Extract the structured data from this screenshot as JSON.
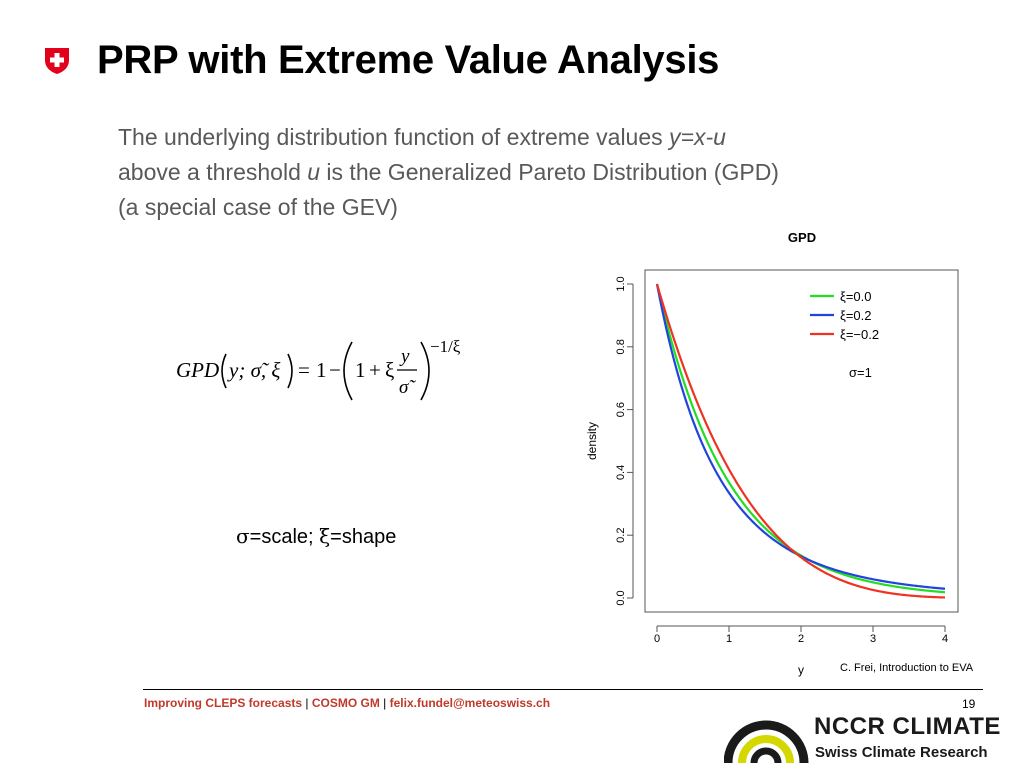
{
  "slide": {
    "title": "PRP with Extreme Value Analysis",
    "intro": {
      "line1_text": "The underlying distribution function of extreme values ",
      "line1_var": "y=x-u",
      "line2_text_a": "above a threshold ",
      "line2_var": "u",
      "line2_text_b": " is the Generalized Pareto Distribution (GPD)",
      "line3_text": "(a special case of the GEV)"
    },
    "formula": {
      "lhs_name": "GPD",
      "lhs_args": "y; σ̃, ξ",
      "equals": "=",
      "one": "1",
      "minus": "−",
      "inner_one": "1",
      "plus": "+",
      "xi": "ξ",
      "numerator": "y",
      "denominator": "σ̃",
      "exponent": "−1/ξ"
    },
    "params": {
      "sigma": "σ",
      "sigma_text": "=scale; ",
      "xi": "ξ",
      "xi_text": "=shape"
    },
    "credit": "C. Frei, Introduction to EVA",
    "footer": {
      "part1": "Improving CLEPS forecasts",
      "sep1": " | ",
      "part2": "COSMO GM",
      "sep2": " | ",
      "part3": "felix.fundel@meteoswiss.ch"
    },
    "page_number": "19",
    "logo": {
      "name": "NCCR CLIMATE",
      "subtitle": "Swiss Climate Research"
    },
    "colors": {
      "flag_red": "#e2001a",
      "footer_red": "#c0392b",
      "logo_yellow": "#d4d800"
    }
  },
  "chart_data": {
    "type": "line",
    "title": "GPD",
    "xlabel": "y",
    "ylabel": "density",
    "xlim": [
      0,
      4
    ],
    "ylim": [
      0,
      1
    ],
    "xticks": [
      "0",
      "1",
      "2",
      "3",
      "4"
    ],
    "yticks": [
      "0.0",
      "0.2",
      "0.4",
      "0.6",
      "0.8",
      "1.0"
    ],
    "legend_position": "top-right",
    "annotation": "σ=1",
    "series": [
      {
        "name": "ξ=0.0",
        "xi": 0.0,
        "color": "#22dd22"
      },
      {
        "name": "ξ=0.2",
        "xi": 0.2,
        "color": "#2244dd"
      },
      {
        "name": "ξ=−0.2",
        "xi": -0.2,
        "color": "#ee3322"
      }
    ]
  }
}
